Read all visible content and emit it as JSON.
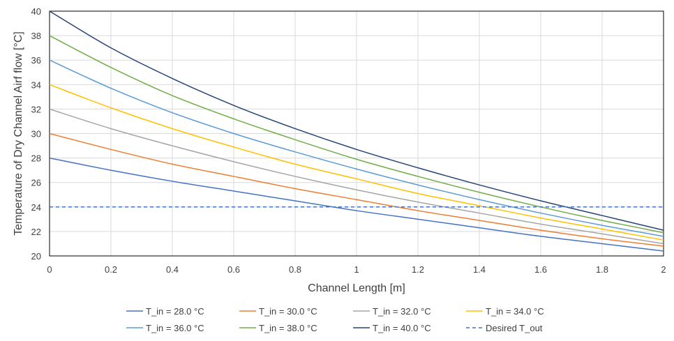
{
  "chart_data": {
    "type": "line",
    "title": "",
    "xlabel": "Channel Length [m]",
    "ylabel": "Temperature of Dry Channel Airf flow [°C]",
    "xlim": [
      0,
      2
    ],
    "ylim": [
      20,
      40
    ],
    "x_ticks": [
      "0",
      "0.2",
      "0.4",
      "0.6",
      "0.8",
      "1",
      "1.2",
      "1.4",
      "1.6",
      "1.8",
      "2"
    ],
    "y_ticks": [
      "20",
      "22",
      "24",
      "26",
      "28",
      "30",
      "32",
      "34",
      "36",
      "38",
      "40"
    ],
    "grid": true,
    "legend_position": "bottom",
    "x": [
      0,
      0.2,
      0.4,
      0.6,
      0.8,
      1.0,
      1.2,
      1.4,
      1.6,
      1.8,
      2.0
    ],
    "series": [
      {
        "name": "T_in = 28.0 °C",
        "color": "#4472C4",
        "dash": false,
        "values": [
          28.0,
          27.0,
          26.1,
          25.3,
          24.5,
          23.7,
          23.0,
          22.3,
          21.6,
          21.0,
          20.4
        ]
      },
      {
        "name": "T_in = 30.0 °C",
        "color": "#ED7D31",
        "dash": false,
        "values": [
          30.0,
          28.7,
          27.5,
          26.5,
          25.5,
          24.6,
          23.7,
          22.9,
          22.1,
          21.4,
          20.8
        ]
      },
      {
        "name": "T_in = 32.0 °C",
        "color": "#A5A5A5",
        "dash": false,
        "values": [
          32.0,
          30.4,
          29.0,
          27.7,
          26.5,
          25.4,
          24.4,
          23.5,
          22.6,
          21.8,
          21.0
        ]
      },
      {
        "name": "T_in = 34.0 °C",
        "color": "#FFC000",
        "dash": false,
        "values": [
          34.0,
          32.1,
          30.4,
          28.9,
          27.5,
          26.3,
          25.1,
          24.1,
          23.1,
          22.2,
          21.3
        ]
      },
      {
        "name": "T_in = 36.0 °C",
        "color": "#5B9BD5",
        "dash": false,
        "values": [
          36.0,
          33.7,
          31.7,
          30.0,
          28.5,
          27.1,
          25.8,
          24.6,
          23.5,
          22.5,
          21.6
        ]
      },
      {
        "name": "T_in = 38.0 °C",
        "color": "#70AD47",
        "dash": false,
        "values": [
          38.0,
          35.4,
          33.1,
          31.2,
          29.5,
          27.9,
          26.5,
          25.2,
          24.0,
          22.9,
          21.9
        ]
      },
      {
        "name": "T_in = 40.0 °C",
        "color": "#264478",
        "dash": false,
        "values": [
          40.0,
          37.0,
          34.5,
          32.3,
          30.4,
          28.7,
          27.2,
          25.8,
          24.5,
          23.3,
          22.1
        ]
      },
      {
        "name": "Desired T_out",
        "color": "#4472C4",
        "dash": true,
        "values": [
          24,
          24,
          24,
          24,
          24,
          24,
          24,
          24,
          24,
          24,
          24
        ]
      }
    ]
  }
}
